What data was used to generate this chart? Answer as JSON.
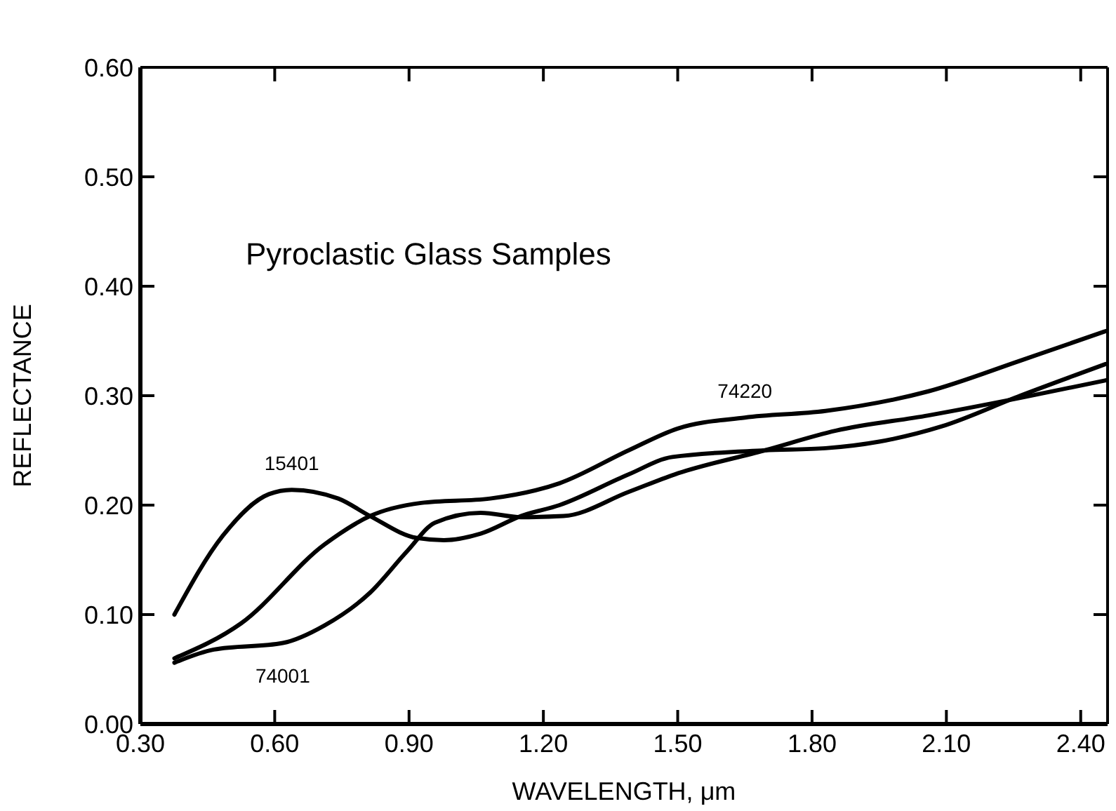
{
  "chart_data": {
    "type": "line",
    "title": "Pyroclastic Glass Samples",
    "xlabel": "WAVELENGTH, μm",
    "ylabel": "REFLECTANCE",
    "xlim": [
      0.3,
      2.46
    ],
    "ylim": [
      0,
      0.6
    ],
    "xticks": [
      {
        "value": 0.3,
        "label": "0.30"
      },
      {
        "value": 0.6,
        "label": "0.60"
      },
      {
        "value": 0.9,
        "label": "0.90"
      },
      {
        "value": 1.2,
        "label": "1.20"
      },
      {
        "value": 1.5,
        "label": "1.50"
      },
      {
        "value": 1.8,
        "label": "1.80"
      },
      {
        "value": 2.1,
        "label": "2.10"
      },
      {
        "value": 2.4,
        "label": "2.40"
      }
    ],
    "yticks": [
      {
        "value": 0,
        "label": "0.00"
      },
      {
        "value": 0.1,
        "label": "0.10"
      },
      {
        "value": 0.2,
        "label": "0.20"
      },
      {
        "value": 0.3,
        "label": "0.30"
      },
      {
        "value": 0.4,
        "label": "0.40"
      },
      {
        "value": 0.5,
        "label": "0.50"
      },
      {
        "value": 0.6,
        "label": "0.60"
      }
    ],
    "grid": false,
    "marker": "none",
    "line_style": "solid",
    "series": [
      {
        "color": "#000000",
        "x": [
          0.376,
          0.484,
          0.587,
          0.638,
          0.742,
          0.813,
          0.917,
          0.978,
          1.06,
          1.15,
          1.236,
          1.39,
          1.488,
          1.694,
          1.83,
          1.95,
          2.09,
          2.265,
          2.456
        ],
        "values": [
          0.1,
          0.172,
          0.21,
          0.214,
          0.206,
          0.19,
          0.17,
          0.168,
          0.174,
          0.19,
          0.2,
          0.228,
          0.244,
          0.25,
          0.252,
          0.258,
          0.272,
          0.3,
          0.329
        ]
      },
      {
        "color": "#000000",
        "x": [
          0.376,
          0.464,
          0.618,
          0.711,
          0.813,
          0.896,
          0.958,
          1.06,
          1.15,
          1.245,
          1.39,
          1.493,
          1.694,
          1.853,
          2.06,
          2.265,
          2.456
        ],
        "values": [
          0.056,
          0.068,
          0.074,
          0.09,
          0.12,
          0.158,
          0.184,
          0.193,
          0.189,
          0.19,
          0.212,
          0.228,
          0.25,
          0.268,
          0.282,
          0.298,
          0.314
        ]
      },
      {
        "color": "#000000",
        "x": [
          0.376,
          0.525,
          0.711,
          0.813,
          0.927,
          1.081,
          1.236,
          1.39,
          1.5,
          1.65,
          1.83,
          2.06,
          2.265,
          2.456
        ],
        "values": [
          0.06,
          0.092,
          0.164,
          0.19,
          0.202,
          0.206,
          0.22,
          0.25,
          0.27,
          0.28,
          0.286,
          0.304,
          0.332,
          0.359
        ]
      }
    ],
    "annotations": [
      {
        "text": "15401",
        "x": 0.638,
        "y": 0.214
      },
      {
        "text": "74001",
        "x": 0.618,
        "y": 0.074
      },
      {
        "text": "74220",
        "x": 1.65,
        "y": 0.28
      }
    ]
  }
}
